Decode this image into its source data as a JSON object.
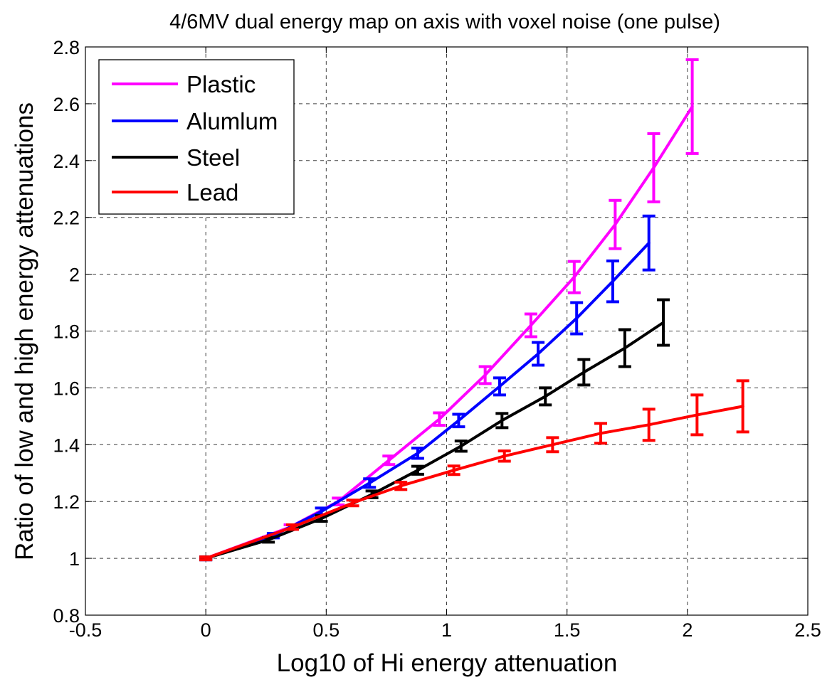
{
  "chart_data": {
    "type": "line",
    "title": "4/6MV dual energy map on axis with voxel noise (one pulse)",
    "xlabel": "Log10 of Hi energy attenuation",
    "ylabel": "Ratio of low and high energy attenuations",
    "xlim": [
      -0.5,
      2.5
    ],
    "ylim": [
      0.8,
      2.8
    ],
    "xticks": [
      -0.5,
      0,
      0.5,
      1,
      1.5,
      2,
      2.5
    ],
    "xtick_labels": [
      "-0.5",
      "0",
      "0.5",
      "1",
      "1.5",
      "2",
      "2.5"
    ],
    "yticks": [
      0.8,
      1,
      1.2,
      1.4,
      1.6,
      1.8,
      2,
      2.2,
      2.4,
      2.6,
      2.8
    ],
    "ytick_labels": [
      "0.8",
      "1",
      "1.2",
      "1.4",
      "1.6",
      "1.8",
      "2",
      "2.2",
      "2.4",
      "2.6",
      "2.8"
    ],
    "grid": true,
    "legend_position": "top-left",
    "series": [
      {
        "name": "Plastic",
        "color": "#ff00ff",
        "x": [
          0,
          0.35,
          0.55,
          0.76,
          0.97,
          1.16,
          1.35,
          1.53,
          1.7,
          1.86,
          2.02
        ],
        "y": [
          1.0,
          1.11,
          1.2,
          1.345,
          1.49,
          1.645,
          1.82,
          1.99,
          2.175,
          2.375,
          2.59
        ],
        "err": [
          0.005,
          0.008,
          0.012,
          0.015,
          0.022,
          0.03,
          0.04,
          0.055,
          0.085,
          0.12,
          0.165
        ]
      },
      {
        "name": "Alumlum",
        "color": "#0000ff",
        "x": [
          0,
          0.28,
          0.48,
          0.68,
          0.88,
          1.05,
          1.22,
          1.38,
          1.54,
          1.69,
          1.84
        ],
        "y": [
          1.0,
          1.08,
          1.165,
          1.265,
          1.37,
          1.485,
          1.605,
          1.72,
          1.845,
          1.975,
          2.11
        ],
        "err": [
          0.005,
          0.008,
          0.012,
          0.015,
          0.018,
          0.022,
          0.03,
          0.04,
          0.055,
          0.072,
          0.095
        ]
      },
      {
        "name": "Steel",
        "color": "#000000",
        "x": [
          0,
          0.26,
          0.48,
          0.69,
          0.88,
          1.06,
          1.23,
          1.41,
          1.57,
          1.74,
          1.9
        ],
        "y": [
          1.0,
          1.065,
          1.14,
          1.225,
          1.31,
          1.395,
          1.485,
          1.57,
          1.655,
          1.74,
          1.83
        ],
        "err": [
          0.005,
          0.008,
          0.01,
          0.012,
          0.014,
          0.018,
          0.025,
          0.03,
          0.045,
          0.065,
          0.08
        ]
      },
      {
        "name": "Lead",
        "color": "#ff0000",
        "x": [
          0,
          0.36,
          0.61,
          0.81,
          1.03,
          1.24,
          1.44,
          1.64,
          1.84,
          2.04,
          2.23
        ],
        "y": [
          1.0,
          1.11,
          1.195,
          1.255,
          1.31,
          1.36,
          1.4,
          1.44,
          1.47,
          1.505,
          1.535
        ],
        "err": [
          0.005,
          0.008,
          0.01,
          0.013,
          0.015,
          0.018,
          0.025,
          0.035,
          0.055,
          0.07,
          0.09
        ]
      }
    ]
  }
}
